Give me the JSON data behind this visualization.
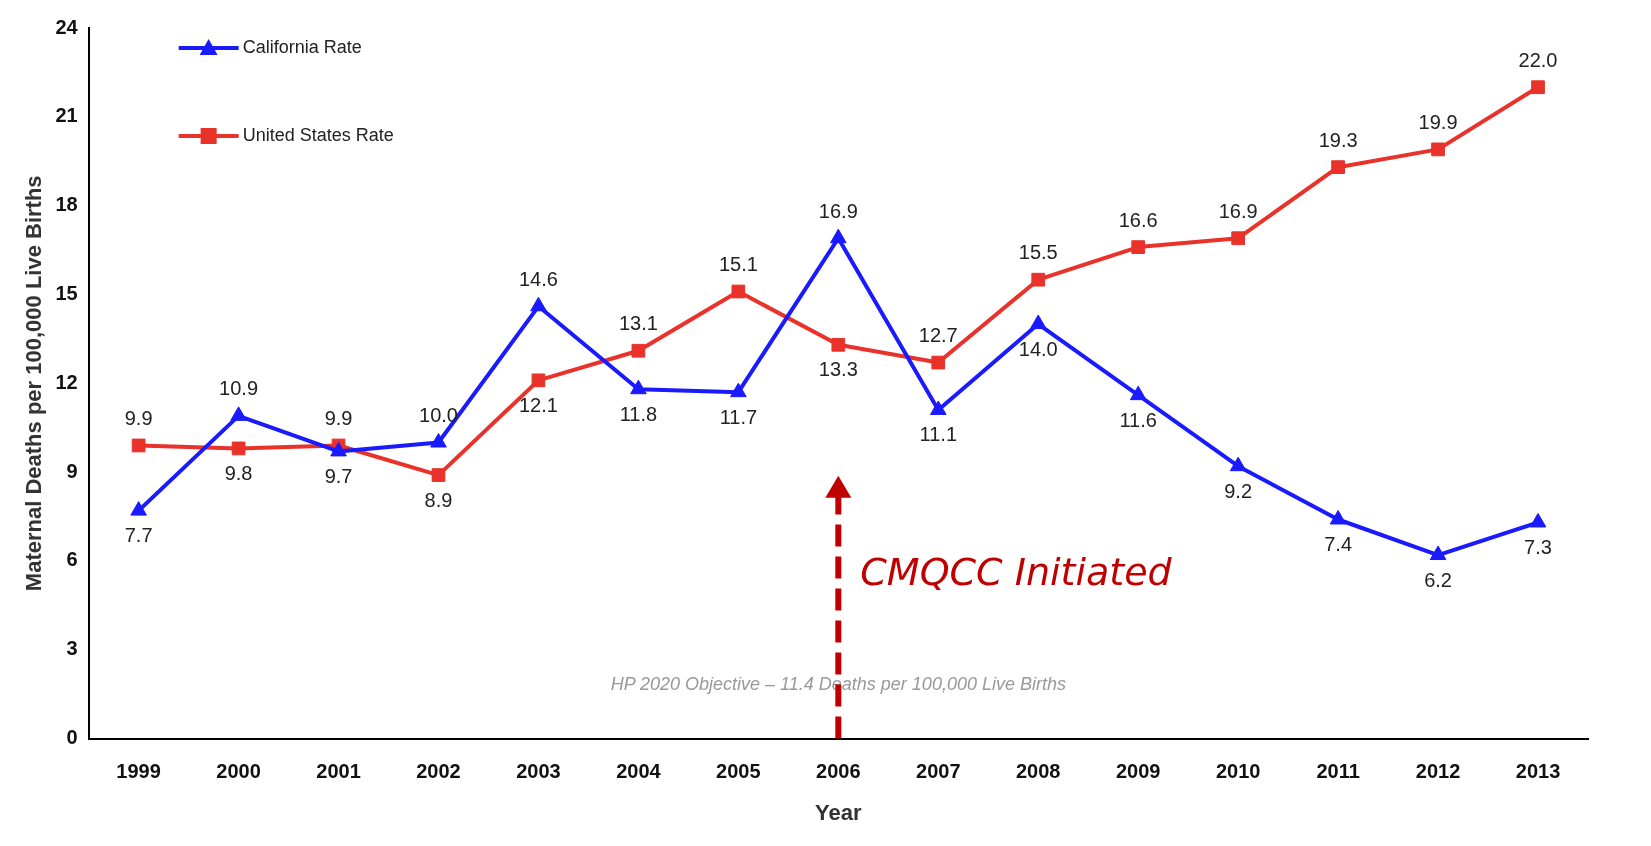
{
  "chart_data": {
    "type": "line",
    "xlabel": "Year",
    "ylabel": "Maternal Deaths per 100,000 Live Births",
    "categories": [
      "1999",
      "2000",
      "2001",
      "2002",
      "2003",
      "2004",
      "2005",
      "2006",
      "2007",
      "2008",
      "2009",
      "2010",
      "2011",
      "2012",
      "2013"
    ],
    "series": [
      {
        "name": "California Rate",
        "color": "#1a1aff",
        "marker": "triangle",
        "values": [
          7.7,
          10.9,
          9.7,
          10.0,
          14.6,
          11.8,
          11.7,
          16.9,
          11.1,
          14.0,
          11.6,
          9.2,
          7.4,
          6.2,
          7.3
        ],
        "value_labels": [
          "7.7",
          "10.9",
          "9.7",
          "10.0",
          "14.6",
          "11.8",
          "11.7",
          "16.9",
          "11.1",
          "14.0",
          "11.6",
          "9.2",
          "7.4",
          "6.2",
          "7.3"
        ]
      },
      {
        "name": "United States Rate",
        "color": "#e8322a",
        "marker": "square",
        "values": [
          9.9,
          9.8,
          9.9,
          8.9,
          12.1,
          13.1,
          15.1,
          13.3,
          12.7,
          15.5,
          16.6,
          16.9,
          19.3,
          19.9,
          22.0
        ],
        "value_labels": [
          "9.9",
          "9.8",
          "9.9",
          "8.9",
          "12.1",
          "13.1",
          "15.1",
          "13.3",
          "12.7",
          "15.5",
          "16.6",
          "16.9",
          "19.3",
          "19.9",
          "22.0"
        ]
      }
    ],
    "ylim": [
      0,
      24
    ],
    "yticks": [
      0,
      3,
      6,
      9,
      12,
      15,
      18,
      21,
      24
    ],
    "grid": false,
    "legend": "top left",
    "annotations": [
      "HP 2020 Objective – 11.4 Deaths per 100,000 Live Births",
      "CMQCC Initiated"
    ]
  }
}
